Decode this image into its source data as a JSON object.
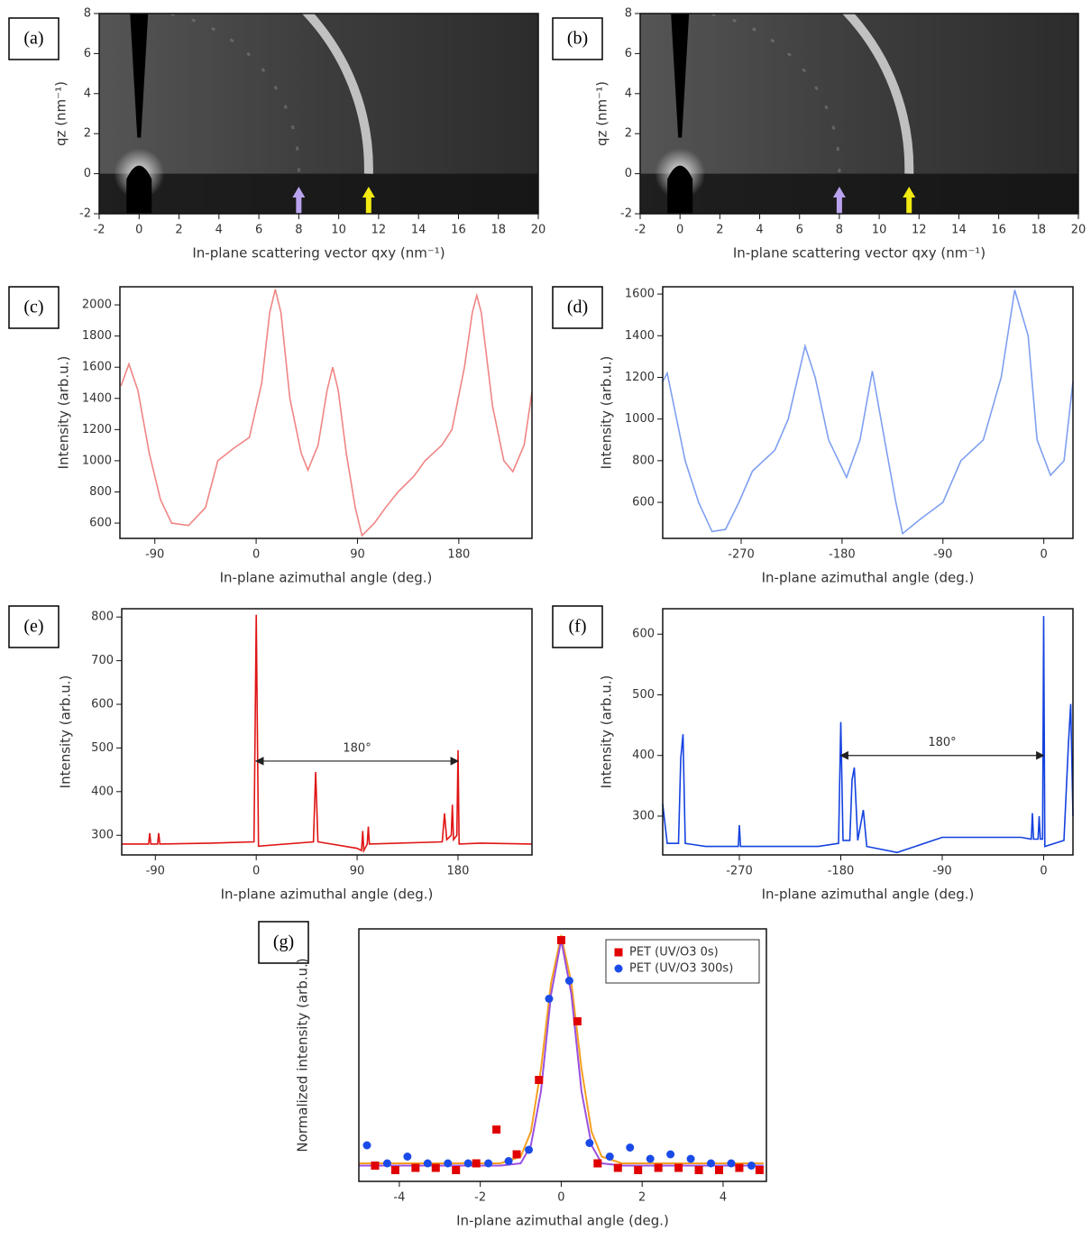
{
  "chart_data": [
    {
      "type": "image",
      "label": "(a)",
      "xlabel": "In-plane scattering vector qxy (nm⁻¹)",
      "ylabel": "qz (nm⁻¹)",
      "xlim": [
        -2,
        20
      ],
      "ylim": [
        -2,
        8
      ],
      "xticks": [
        -2,
        0,
        2,
        4,
        6,
        8,
        10,
        12,
        14,
        16,
        18,
        20
      ],
      "yticks": [
        -2,
        0,
        2,
        4,
        6,
        8
      ],
      "arrows": [
        {
          "x": 8,
          "color": "#b9a3ee"
        },
        {
          "x": 11.5,
          "color": "#f2ea12"
        }
      ]
    },
    {
      "type": "image",
      "label": "(b)",
      "xlabel": "In-plane scattering vector qxy (nm⁻¹)",
      "ylabel": "qz (nm⁻¹)",
      "xlim": [
        -2,
        20
      ],
      "ylim": [
        -2,
        8
      ],
      "xticks": [
        -2,
        0,
        2,
        4,
        6,
        8,
        10,
        12,
        14,
        16,
        18,
        20
      ],
      "yticks": [
        -2,
        0,
        2,
        4,
        6,
        8
      ],
      "arrows": [
        {
          "x": 8,
          "color": "#b9a3ee"
        },
        {
          "x": 11.5,
          "color": "#f2ea12"
        }
      ]
    },
    {
      "type": "line",
      "label": "(c)",
      "xlabel": "In-plane azimuthal angle (deg.)",
      "ylabel": "Intensity (arb.u.)",
      "xlim": [
        -121,
        245
      ],
      "ylim": [
        502,
        2116
      ],
      "xticks": [
        -90,
        0,
        90,
        180
      ],
      "yticks": [
        600,
        800,
        1000,
        1200,
        1400,
        1600,
        1800,
        2000
      ],
      "x": [
        -120,
        -113,
        -105,
        -95,
        -85,
        -75,
        -60,
        -45,
        -34,
        -20,
        -6,
        5,
        12,
        17,
        22,
        30,
        40,
        46,
        55,
        63,
        68,
        73,
        80,
        88,
        94,
        105,
        115,
        126,
        140,
        150,
        165,
        174,
        185,
        192,
        196,
        200,
        210,
        220,
        228,
        238,
        245
      ],
      "series": [
        {
          "color": "#f08585",
          "values": [
            1480,
            1620,
            1450,
            1050,
            750,
            600,
            585,
            700,
            1000,
            1080,
            1150,
            1500,
            1950,
            2100,
            1950,
            1400,
            1050,
            940,
            1100,
            1450,
            1600,
            1450,
            1050,
            700,
            520,
            600,
            700,
            800,
            900,
            1000,
            1100,
            1200,
            1600,
            1950,
            2060,
            1950,
            1350,
            1000,
            930,
            1100,
            1440
          ]
        }
      ]
    },
    {
      "type": "line",
      "label": "(d)",
      "xlabel": "In-plane azimuthal angle (deg.)",
      "ylabel": "Intensity (arb.u.)",
      "xlim": [
        -340,
        26
      ],
      "ylim": [
        427,
        1635
      ],
      "xticks": [
        -270,
        -180,
        -90,
        0
      ],
      "yticks": [
        600,
        800,
        1000,
        1200,
        1400,
        1600
      ],
      "x": [
        -340,
        -336,
        -320,
        -308,
        -296,
        -284,
        -272,
        -260,
        -240,
        -228,
        -213,
        -204,
        -192,
        -176,
        -164,
        -153,
        -142,
        -132,
        -126,
        -110,
        -90,
        -74,
        -54,
        -38,
        -26,
        -14,
        -6,
        6,
        18,
        26
      ],
      "series": [
        {
          "color": "#7f9ff0",
          "values": [
            1180,
            1220,
            800,
            600,
            460,
            470,
            600,
            750,
            850,
            1000,
            1350,
            1200,
            900,
            720,
            900,
            1230,
            900,
            600,
            450,
            520,
            600,
            800,
            900,
            1200,
            1620,
            1400,
            900,
            730,
            800,
            1180
          ]
        }
      ]
    },
    {
      "type": "line",
      "label": "(e)",
      "xlabel": "In-plane azimuthal angle (deg.)",
      "ylabel": "Intensity (arb.u.)",
      "xlim": [
        -120,
        246
      ],
      "ylim": [
        255,
        819
      ],
      "xticks": [
        -90,
        0,
        90,
        180
      ],
      "yticks": [
        300,
        400,
        500,
        600,
        700,
        800
      ],
      "x": [
        -120,
        -96,
        -95,
        -94,
        -88,
        -87,
        -86,
        -40,
        -2,
        0,
        2,
        51,
        53,
        55,
        90,
        94,
        95,
        96,
        99,
        100,
        101,
        166,
        168,
        170,
        174,
        175,
        176,
        179,
        180,
        181,
        200,
        246
      ],
      "series": [
        {
          "color": "#e01414",
          "values": [
            280,
            280,
            305,
            280,
            280,
            305,
            280,
            282,
            285,
            805,
            275,
            285,
            445,
            285,
            270,
            265,
            310,
            265,
            280,
            320,
            280,
            285,
            350,
            290,
            300,
            370,
            290,
            300,
            495,
            280,
            282,
            280
          ]
        }
      ],
      "annotation": {
        "text": "180°",
        "x": [
          0,
          180
        ],
        "y": 470
      }
    },
    {
      "type": "line",
      "label": "(f)",
      "xlabel": "In-plane azimuthal angle (deg.)",
      "ylabel": "Intensity (arb.u.)",
      "xlim": [
        -338,
        26
      ],
      "ylim": [
        236,
        642
      ],
      "xticks": [
        -270,
        -180,
        -90,
        0
      ],
      "yticks": [
        300,
        400,
        500,
        600
      ],
      "x": [
        -338,
        -334,
        -324,
        -322,
        -320,
        -318,
        -300,
        -271,
        -270,
        -269,
        -200,
        -182,
        -180,
        -178,
        -172,
        -170,
        -168,
        -165,
        -160,
        -157,
        -130,
        -90,
        -20,
        -11,
        -10,
        -9,
        -5,
        -4,
        -3,
        -1,
        0,
        1,
        18,
        22,
        24,
        26
      ],
      "series": [
        {
          "color": "#1442e0",
          "values": [
            320,
            255,
            255,
            395,
            435,
            255,
            250,
            250,
            285,
            250,
            250,
            255,
            455,
            260,
            260,
            360,
            380,
            260,
            310,
            250,
            240,
            265,
            265,
            262,
            305,
            262,
            262,
            300,
            262,
            262,
            630,
            250,
            260,
            420,
            485,
            300
          ]
        }
      ],
      "annotation": {
        "text": "180°",
        "x": [
          -180,
          0
        ],
        "y": 400
      }
    },
    {
      "type": "scatter",
      "label": "(g)",
      "xlabel": "In-plane azimuthal angle (deg.)",
      "ylabel": "Normalized intensity (arb.u.)",
      "xlim": [
        -5,
        5.07
      ],
      "ylim": [
        -0.07,
        1.05
      ],
      "xticks": [
        -4,
        -2,
        0,
        2,
        4
      ],
      "legend": "upper right",
      "series": [
        {
          "name": "PET (UV/O3 0s)",
          "color": "#e00000",
          "marker": "square",
          "x": [
            -4.6,
            -4.1,
            -3.6,
            -3.1,
            -2.6,
            -2.1,
            -1.6,
            -1.1,
            -0.55,
            0,
            0.4,
            0.9,
            1.4,
            1.9,
            2.4,
            2.9,
            3.4,
            3.9,
            4.4,
            4.9
          ],
          "values": [
            0.0,
            -0.02,
            -0.01,
            -0.01,
            -0.02,
            0.01,
            0.16,
            0.05,
            0.38,
            1.0,
            0.64,
            0.01,
            -0.01,
            -0.02,
            -0.01,
            -0.01,
            -0.02,
            -0.02,
            -0.01,
            -0.02
          ]
        },
        {
          "name": "PET (UV/O3 300s)",
          "color": "#1a4be8",
          "marker": "circle",
          "x": [
            -4.8,
            -4.3,
            -3.8,
            -3.3,
            -2.8,
            -2.3,
            -1.8,
            -1.3,
            -0.8,
            -0.3,
            0.2,
            0.7,
            1.2,
            1.7,
            2.2,
            2.7,
            3.2,
            3.7,
            4.2,
            4.7
          ],
          "values": [
            0.09,
            0.01,
            0.04,
            0.01,
            0.01,
            0.01,
            0.01,
            0.02,
            0.07,
            0.74,
            0.82,
            0.1,
            0.04,
            0.08,
            0.03,
            0.05,
            0.03,
            0.01,
            0.01,
            0.0
          ]
        }
      ],
      "fits": [
        {
          "color": "#f5a020",
          "x": [
            -5,
            -2,
            -1.5,
            -1,
            -0.75,
            -0.5,
            -0.25,
            0,
            0.25,
            0.5,
            0.75,
            1,
            1.5,
            2,
            5
          ],
          "values": [
            0.01,
            0.01,
            0.01,
            0.04,
            0.15,
            0.43,
            0.81,
            1.02,
            0.81,
            0.43,
            0.15,
            0.04,
            0.01,
            0.01,
            0.01
          ]
        },
        {
          "color": "#9a50e0",
          "x": [
            -5,
            -2,
            -1.5,
            -1,
            -0.75,
            -0.5,
            -0.25,
            0,
            0.25,
            0.5,
            0.75,
            1,
            1.5,
            2,
            5
          ],
          "values": [
            0.0,
            0.0,
            0.0,
            0.01,
            0.09,
            0.33,
            0.76,
            1.0,
            0.76,
            0.33,
            0.09,
            0.01,
            0.0,
            0.0,
            0.0
          ]
        }
      ]
    }
  ]
}
